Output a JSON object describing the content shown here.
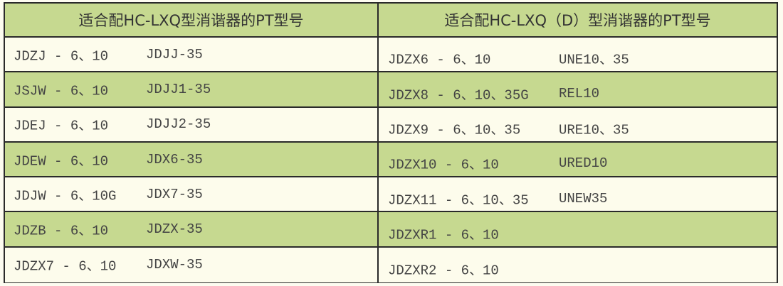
{
  "colors": {
    "header_bg": "#c6d990",
    "alt_row_bg": "#c6d990",
    "row_bg": "#fdfcec",
    "border": "#2a2a2a"
  },
  "left": {
    "title": "适合配HC-LXQ型消谐器的PT型号",
    "rows": [
      {
        "a": "JDZJ - 6、10",
        "b": "JDJJ-35"
      },
      {
        "a": "JSJW - 6、10",
        "b": "JDJJ1-35"
      },
      {
        "a": "JDEJ - 6、10",
        "b": "JDJJ2-35"
      },
      {
        "a": "JDEW - 6、10",
        "b": "JDX6-35"
      },
      {
        "a": "JDJW - 6、10G",
        "b": "JDX7-35"
      },
      {
        "a": "JDZB - 6、10",
        "b": "JDZX-35"
      },
      {
        "a": "JDZX7 - 6、10",
        "b": "JDXW-35"
      }
    ]
  },
  "right": {
    "title": "适合配HC-LXQ（D）型消谐器的PT型号",
    "rows": [
      {
        "a": "JDZX6 - 6、10",
        "b": "UNE10、35"
      },
      {
        "a": "JDZX8 - 6、10、35G",
        "b": "REL10"
      },
      {
        "a": "JDZX9 - 6、10、35",
        "b": "URE10、35"
      },
      {
        "a": "JDZX10 - 6、10",
        "b": "URED10"
      },
      {
        "a": "JDZX11 - 6、10、35",
        "b": "UNEW35"
      },
      {
        "a": "JDZXR1 - 6、10",
        "b": ""
      },
      {
        "a": "JDZXR2 - 6、10",
        "b": ""
      }
    ]
  }
}
